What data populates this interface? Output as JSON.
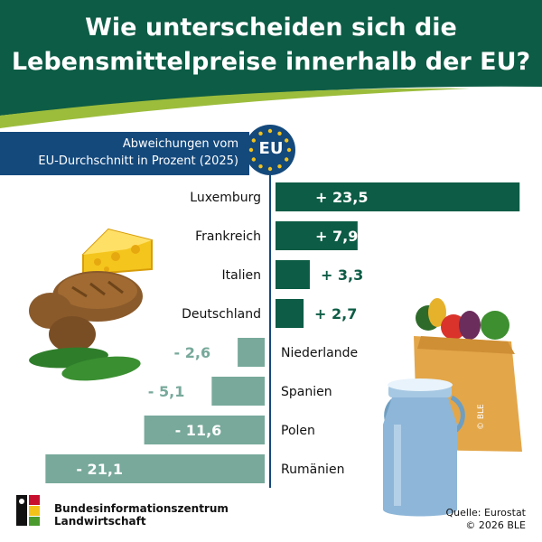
{
  "header": {
    "title_line1": "Wie unterscheiden sich die",
    "title_line2": "Lebensmittelpreise innerhalb der EU?"
  },
  "subtitle": {
    "line1": "Abweichungen vom",
    "line2": "EU-Durchschnitt in Prozent (2025)"
  },
  "eu_badge": "EU",
  "footer": {
    "org_line1": "Bundesinformationszentrum",
    "org_line2": "Landwirtschaft",
    "source": "Quelle: Eurostat",
    "copyright": "© 2026 BLE",
    "side_credit": "© BLE"
  },
  "colors": {
    "dark_green": "#0d5c45",
    "light_green": "#78a99b",
    "navy": "#14497c",
    "gold": "#f2c21b"
  },
  "chart_data": {
    "type": "bar",
    "orientation": "horizontal",
    "title": "Wie unterscheiden sich die Lebensmittelpreise innerhalb der EU?",
    "subtitle": "Abweichungen vom EU-Durchschnitt in Prozent (2025)",
    "categories": [
      "Luxemburg",
      "Frankreich",
      "Italien",
      "Deutschland",
      "Niederlande",
      "Spanien",
      "Polen",
      "Rumänien"
    ],
    "values": [
      23.5,
      7.9,
      3.3,
      2.7,
      -2.6,
      -5.1,
      -11.6,
      -21.1
    ],
    "value_labels": [
      "+ 23,5",
      "+ 7,9",
      "+ 3,3",
      "+ 2,7",
      "- 2,6",
      "- 5,1",
      "- 11,6",
      "- 21,1"
    ],
    "baseline": 0,
    "positive_color": "#0d5c45",
    "negative_color": "#78a99b"
  }
}
